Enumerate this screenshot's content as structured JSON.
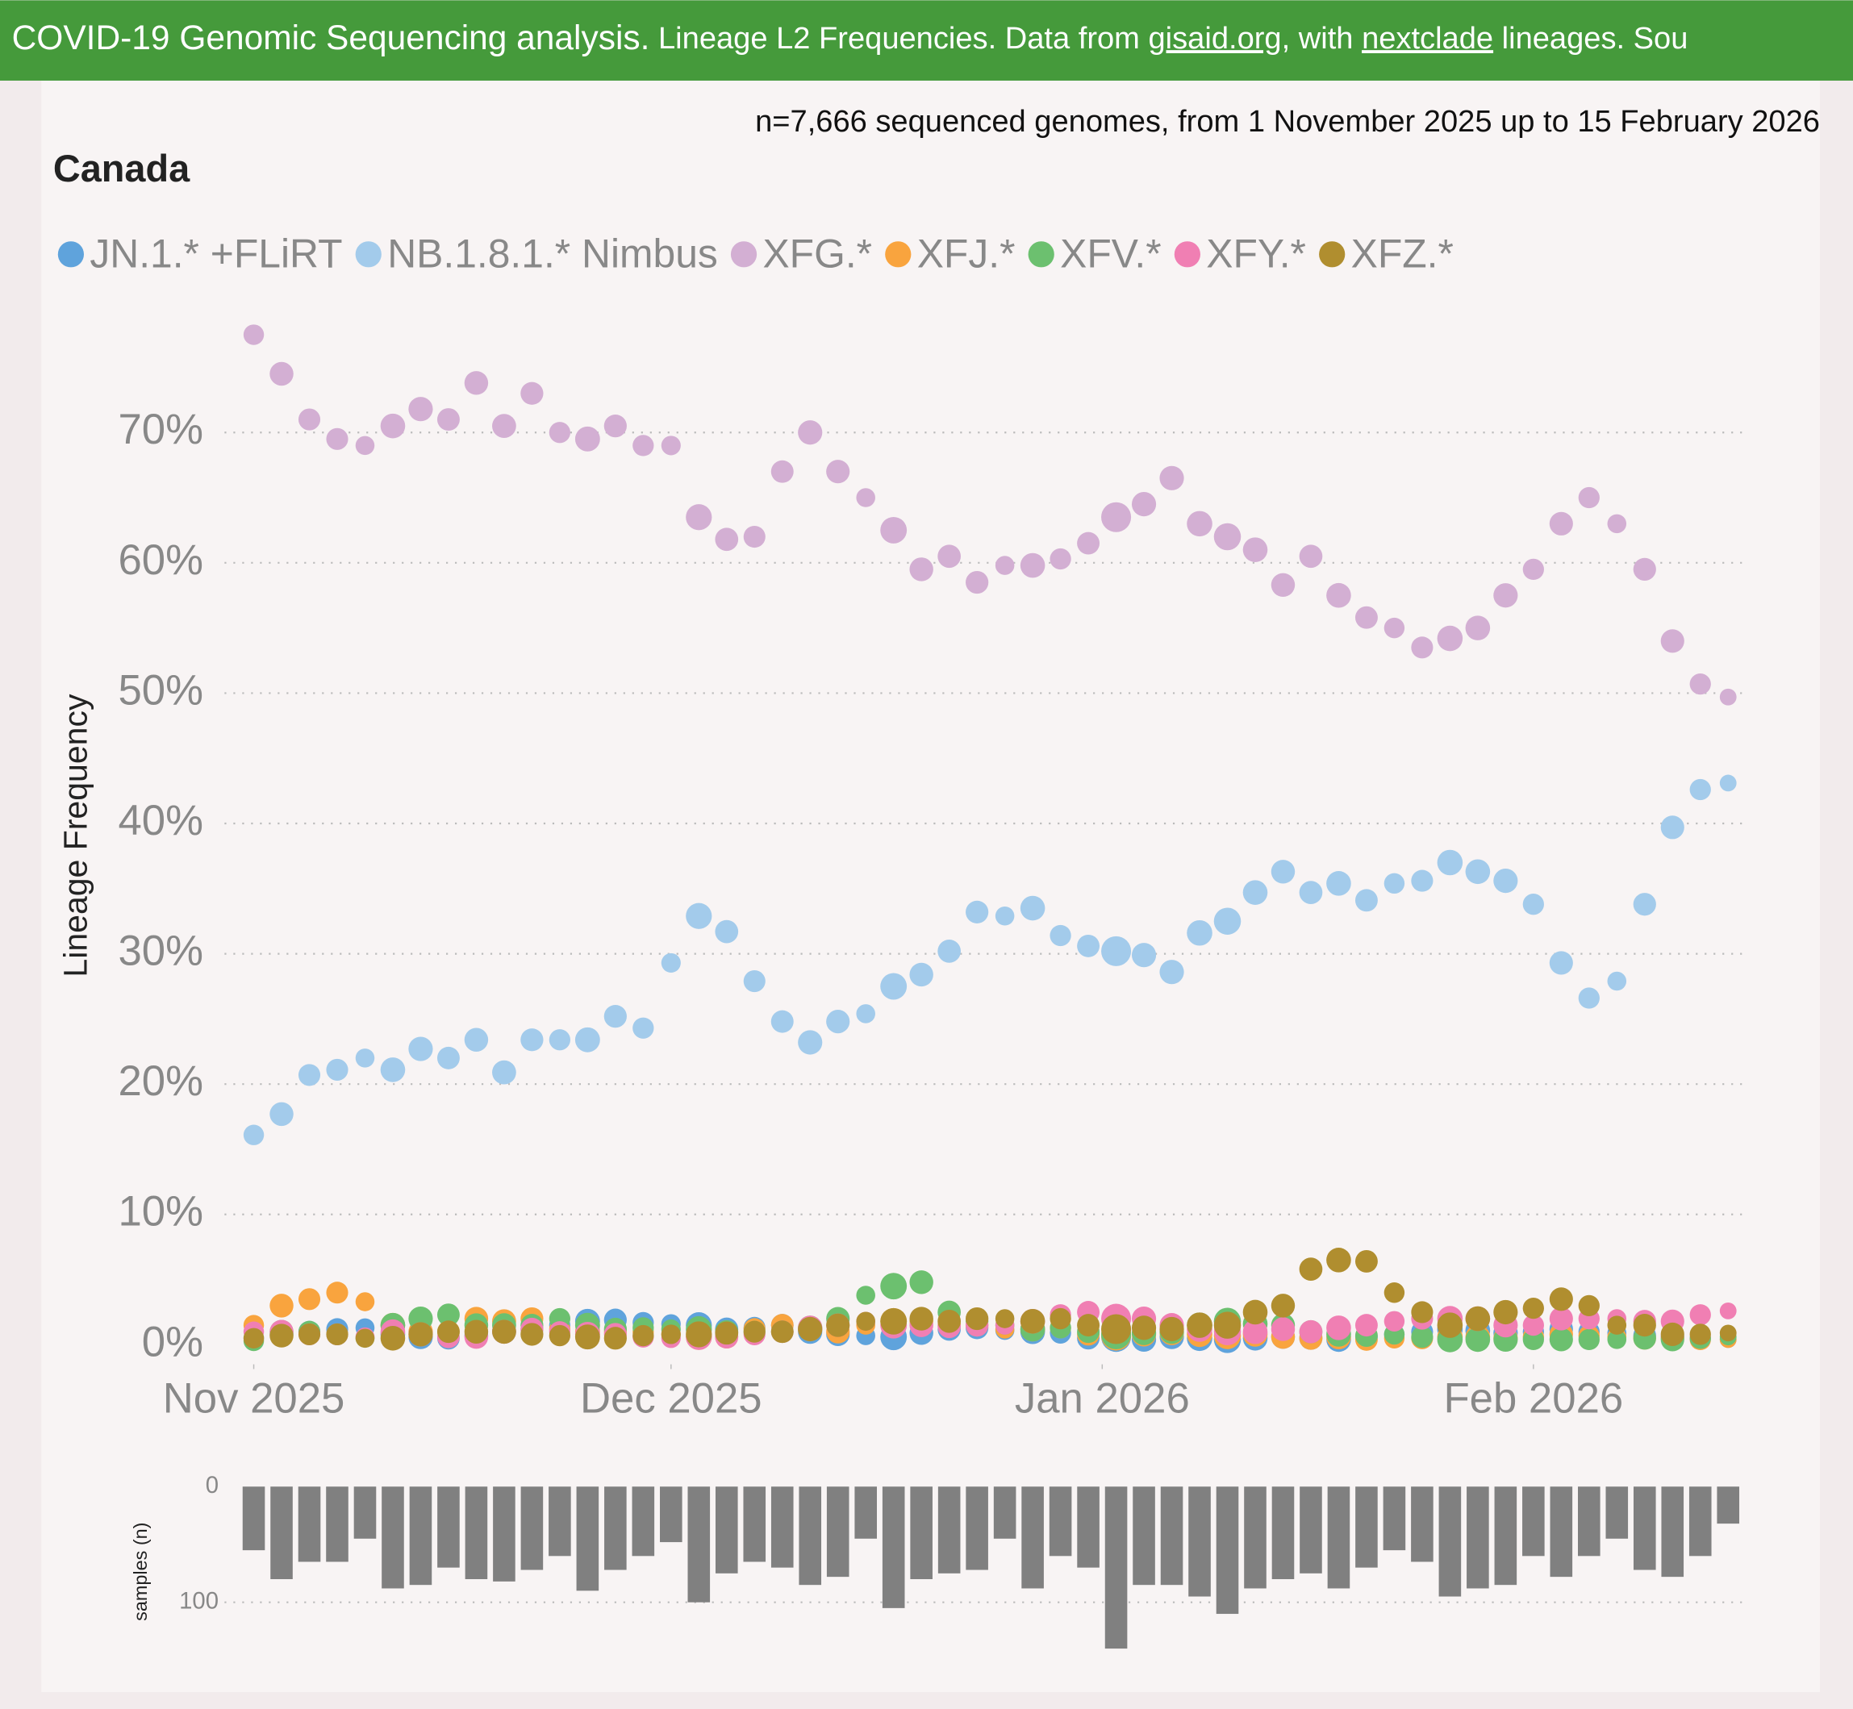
{
  "header": {
    "parts": [
      "COVID-19 Genomic Sequencing analysis.",
      " Lineage L2 Frequencies. Data from ",
      "gisaid.org",
      ", with ",
      "nextclade",
      " lineages. Sou"
    ]
  },
  "chart_data": [
    {
      "type": "scatter",
      "title": "Canada",
      "subtitle": "n=7,666 sequenced genomes, from 1 November 2025 up to 15 February 2026",
      "y_label": "Lineage Frequency",
      "x": [
        0,
        2,
        4,
        6,
        8,
        10,
        12,
        14,
        16,
        18,
        20,
        22,
        24,
        26,
        28,
        30,
        32,
        34,
        36,
        38,
        40,
        42,
        44,
        46,
        48,
        50,
        52,
        54,
        56,
        58,
        60,
        62,
        64,
        66,
        68,
        70,
        72,
        74,
        76,
        78,
        80,
        82,
        84,
        86,
        88,
        90,
        92,
        94,
        96,
        98,
        100,
        102,
        104,
        106
      ],
      "xlim": [
        -2.1,
        107.5
      ],
      "xticks": [
        {
          "value": 0,
          "label": "Nov 2025"
        },
        {
          "value": 30,
          "label": "Dec 2025"
        },
        {
          "value": 61,
          "label": "Jan 2026"
        },
        {
          "value": 92,
          "label": "Feb 2026"
        }
      ],
      "ylim": [
        -1.5,
        80
      ],
      "yticks": [
        {
          "value": 0,
          "label": "0%"
        },
        {
          "value": 10,
          "label": "10%"
        },
        {
          "value": 20,
          "label": "20%"
        },
        {
          "value": 30,
          "label": "30%"
        },
        {
          "value": 40,
          "label": "40%"
        },
        {
          "value": 50,
          "label": "50%"
        },
        {
          "value": 60,
          "label": "60%"
        },
        {
          "value": 70,
          "label": "70%"
        }
      ],
      "grid": true,
      "series": [
        {
          "name": "JN.1.* +FLiRT",
          "color": "#5fa3dc",
          "values": [
            0.5,
            0.8,
            1,
            1.2,
            1.3,
            0.8,
            0.6,
            0.5,
            0.7,
            1,
            1.2,
            1.5,
            1.8,
            1.9,
            1.7,
            1.6,
            1.5,
            1.2,
            1.3,
            1.5,
            1,
            0.8,
            0.7,
            0.6,
            0.9,
            1.2,
            1.3,
            1.1,
            1.0,
            0.9,
            0.5,
            0.6,
            0.4,
            0.6,
            0.5,
            0.4,
            0.5,
            0.6,
            0.5,
            0.4,
            0.6,
            0.8,
            1.0,
            1.2,
            1.1,
            0.9,
            1.0,
            1.2,
            1.0,
            0.9,
            0.7,
            0.6,
            0.5,
            0.4
          ]
        },
        {
          "name": "NB.1.8.1.* Nimbus",
          "color": "#a3cbeb",
          "values": [
            16.1,
            17.7,
            20.7,
            21.1,
            22,
            21.1,
            22.7,
            22,
            23.4,
            20.9,
            23.4,
            23.4,
            23.4,
            25.2,
            24.3,
            29.3,
            32.9,
            31.7,
            27.9,
            24.8,
            23.2,
            24.8,
            25.4,
            27.5,
            28.4,
            30.2,
            33.2,
            32.9,
            33.5,
            31.4,
            30.6,
            30.2,
            29.9,
            28.6,
            31.6,
            32.5,
            34.7,
            36.3,
            34.7,
            35.4,
            34.1,
            35.4,
            35.6,
            37,
            36.3,
            35.6,
            33.8,
            29.3,
            26.6,
            27.9,
            33.8,
            39.7,
            42.6,
            43.1
          ]
        },
        {
          "name": "XFG.*",
          "color": "#d3afd3",
          "values": [
            77.5,
            74.5,
            71,
            69.5,
            69,
            70.5,
            71.8,
            71,
            73.8,
            70.5,
            73,
            70,
            69.5,
            70.5,
            69,
            69,
            63.5,
            61.8,
            62,
            67,
            70,
            67,
            65,
            62.5,
            59.5,
            60.5,
            58.5,
            59.8,
            59.8,
            60.3,
            61.5,
            63.5,
            64.5,
            66.5,
            63,
            62,
            61,
            58.3,
            60.5,
            57.5,
            55.8,
            55,
            53.5,
            54.2,
            55,
            57.5,
            59.5,
            63,
            65,
            63,
            59.5,
            54,
            50.7,
            49.7
          ]
        },
        {
          "name": "XFJ.*",
          "color": "#f9a43e",
          "values": [
            1.5,
            3,
            3.5,
            4,
            3.3,
            1.5,
            1,
            1,
            2,
            1.8,
            2,
            1.2,
            1,
            1,
            1,
            0.8,
            0.6,
            0.6,
            1.2,
            1.5,
            1.2,
            1,
            1.5,
            1.8,
            1.8,
            1.5,
            1.5,
            1.2,
            1.2,
            1.3,
            0.8,
            0.7,
            0.8,
            0.9,
            0.8,
            0.7,
            0.8,
            0.6,
            0.5,
            0.6,
            0.4,
            0.5,
            0.5,
            0.6,
            0.6,
            0.5,
            0.6,
            0.8,
            0.7,
            0.6,
            0.5,
            0.5,
            0.4,
            0.4
          ]
        },
        {
          "name": "XFV.*",
          "color": "#6cc06f",
          "values": [
            0.3,
            1,
            1,
            0.8,
            0.5,
            1.5,
            2,
            2.3,
            1.5,
            1.5,
            1.5,
            2,
            1.5,
            1.2,
            1.3,
            1.2,
            1.2,
            1,
            1,
            1,
            1.3,
            2,
            3.8,
            4.5,
            4.8,
            2.5,
            1.8,
            1.5,
            1.2,
            1.3,
            1,
            0.8,
            0.9,
            1.0,
            1.5,
            1.8,
            1.6,
            1.5,
            1,
            0.8,
            0.7,
            0.8,
            0.6,
            0.4,
            0.4,
            0.4,
            0.4,
            0.4,
            0.4,
            0.4,
            0.5,
            0.4,
            0.5,
            0.6
          ]
        },
        {
          "name": "XFY.*",
          "color": "#f07fb3",
          "values": [
            1,
            1,
            0.8,
            0.8,
            0.6,
            1,
            0.8,
            0.6,
            0.6,
            1,
            1.2,
            1,
            0.8,
            0.8,
            0.6,
            0.5,
            0.6,
            0.6,
            0.8,
            1,
            1.3,
            1.5,
            1.8,
            1.5,
            1.5,
            1.4,
            1.5,
            1.5,
            1.8,
            2.3,
            2.5,
            2.0,
            2.0,
            1.5,
            1.2,
            1.0,
            1.0,
            1.2,
            1.0,
            1.3,
            1.5,
            1.8,
            2,
            2,
            2,
            1.5,
            1.5,
            2,
            2,
            2,
            1.8,
            1.8,
            2.3,
            2.6
          ]
        },
        {
          "name": "XFZ.*",
          "color": "#b08e2f",
          "values": [
            0.5,
            0.7,
            0.8,
            0.8,
            0.5,
            0.5,
            0.8,
            1,
            1,
            1,
            0.8,
            0.7,
            0.6,
            0.5,
            0.7,
            0.8,
            0.8,
            0.9,
            1,
            1,
            1.2,
            1.5,
            1.8,
            1.8,
            2,
            1.8,
            2,
            2,
            1.8,
            2,
            1.5,
            1.2,
            1.3,
            1.2,
            1.5,
            1.5,
            2.5,
            3,
            5.8,
            6.5,
            6.4,
            4,
            2.5,
            1.5,
            2,
            2.5,
            2.8,
            3.5,
            3,
            1.5,
            1.5,
            0.8,
            0.8,
            0.9
          ]
        }
      ]
    },
    {
      "type": "bar",
      "y_label": "samples (n)",
      "x": [
        0,
        2,
        4,
        6,
        8,
        10,
        12,
        14,
        16,
        18,
        20,
        22,
        24,
        26,
        28,
        30,
        32,
        34,
        36,
        38,
        40,
        42,
        44,
        46,
        48,
        50,
        52,
        54,
        56,
        58,
        60,
        62,
        64,
        66,
        68,
        70,
        72,
        74,
        76,
        78,
        80,
        82,
        84,
        86,
        88,
        90,
        92,
        94,
        96,
        98,
        100,
        102,
        104,
        106
      ],
      "xlim": [
        -2.1,
        107.5
      ],
      "values": [
        55,
        80,
        65,
        65,
        45,
        88,
        85,
        70,
        80,
        82,
        72,
        60,
        90,
        72,
        60,
        48,
        100,
        75,
        65,
        70,
        85,
        78,
        45,
        105,
        80,
        75,
        72,
        45,
        88,
        60,
        70,
        140,
        85,
        85,
        95,
        110,
        88,
        80,
        75,
        88,
        70,
        55,
        65,
        95,
        88,
        85,
        60,
        78,
        60,
        45,
        72,
        78,
        60,
        32
      ],
      "color": "#808080",
      "ylim": [
        0,
        145
      ],
      "inverted": true,
      "yticks": [
        0,
        100
      ],
      "grid": true
    }
  ]
}
